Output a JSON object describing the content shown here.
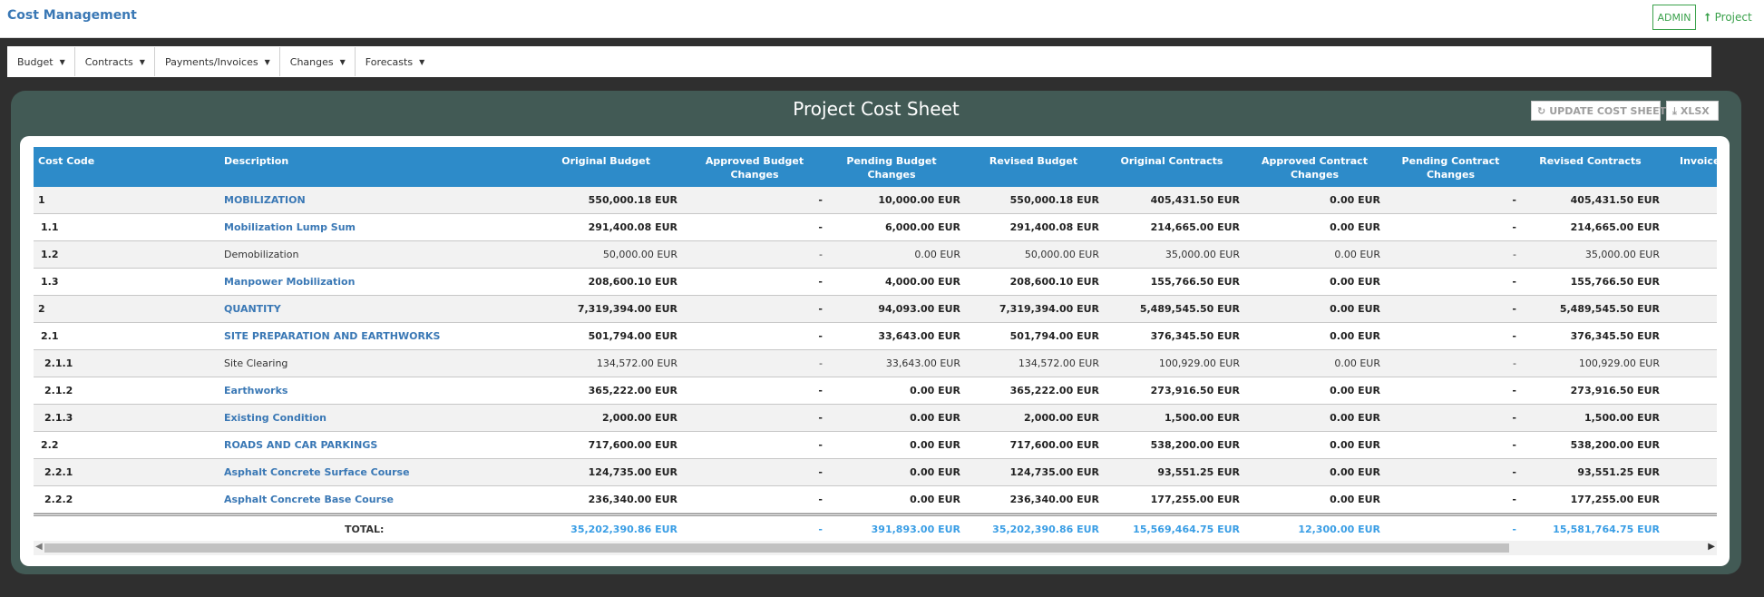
{
  "app": {
    "title": "Cost Management",
    "admin_label": "ADMIN",
    "project_label": "Project"
  },
  "menu": [
    {
      "label": "Budget"
    },
    {
      "label": "Contracts"
    },
    {
      "label": "Payments/Invoices"
    },
    {
      "label": "Changes"
    },
    {
      "label": "Forecasts"
    }
  ],
  "sheet": {
    "title": "Project Cost Sheet",
    "update_label": "UPDATE COST SHEET",
    "xlsx_label": "XLSX"
  },
  "table": {
    "headers": {
      "code": "Cost Code",
      "desc": "Description",
      "ob": "Original Budget",
      "abc": "Approved Budget Changes",
      "pbc": "Pending Budget Changes",
      "rb": "Revised Budget",
      "oc": "Original Contracts",
      "acc": "Approved Contract Changes",
      "pcc": "Pending Contract Changes",
      "rc": "Revised Contracts",
      "inv": "Invoiced"
    },
    "rows": [
      {
        "code": "1",
        "desc": "MOBILIZATION",
        "ob": "550,000.18 EUR",
        "abc": "-",
        "pbc": "10,000.00 EUR",
        "rb": "550,000.18 EUR",
        "oc": "405,431.50 EUR",
        "acc": "0.00 EUR",
        "pcc": "-",
        "rc": "405,431.50 EUR"
      },
      {
        "code": "1.1",
        "desc": "Mobilization Lump Sum",
        "ob": "291,400.08 EUR",
        "abc": "-",
        "pbc": "6,000.00 EUR",
        "rb": "291,400.08 EUR",
        "oc": "214,665.00 EUR",
        "acc": "0.00 EUR",
        "pcc": "-",
        "rc": "214,665.00 EUR"
      },
      {
        "code": "1.2",
        "desc": "Demobilization",
        "ob": "50,000.00 EUR",
        "abc": "-",
        "pbc": "0.00 EUR",
        "rb": "50,000.00 EUR",
        "oc": "35,000.00 EUR",
        "acc": "0.00 EUR",
        "pcc": "-",
        "rc": "35,000.00 EUR"
      },
      {
        "code": "1.3",
        "desc": "Manpower Mobilization",
        "ob": "208,600.10 EUR",
        "abc": "-",
        "pbc": "4,000.00 EUR",
        "rb": "208,600.10 EUR",
        "oc": "155,766.50 EUR",
        "acc": "0.00 EUR",
        "pcc": "-",
        "rc": "155,766.50 EUR"
      },
      {
        "code": "2",
        "desc": "QUANTITY",
        "ob": "7,319,394.00 EUR",
        "abc": "-",
        "pbc": "94,093.00 EUR",
        "rb": "7,319,394.00 EUR",
        "oc": "5,489,545.50 EUR",
        "acc": "0.00 EUR",
        "pcc": "-",
        "rc": "5,489,545.50 EUR"
      },
      {
        "code": "2.1",
        "desc": "SITE PREPARATION AND EARTHWORKS",
        "ob": "501,794.00 EUR",
        "abc": "-",
        "pbc": "33,643.00 EUR",
        "rb": "501,794.00 EUR",
        "oc": "376,345.50 EUR",
        "acc": "0.00 EUR",
        "pcc": "-",
        "rc": "376,345.50 EUR"
      },
      {
        "code": "2.1.1",
        "desc": "Site Clearing",
        "ob": "134,572.00 EUR",
        "abc": "-",
        "pbc": "33,643.00 EUR",
        "rb": "134,572.00 EUR",
        "oc": "100,929.00 EUR",
        "acc": "0.00 EUR",
        "pcc": "-",
        "rc": "100,929.00 EUR"
      },
      {
        "code": "2.1.2",
        "desc": "Earthworks",
        "ob": "365,222.00 EUR",
        "abc": "-",
        "pbc": "0.00 EUR",
        "rb": "365,222.00 EUR",
        "oc": "273,916.50 EUR",
        "acc": "0.00 EUR",
        "pcc": "-",
        "rc": "273,916.50 EUR"
      },
      {
        "code": "2.1.3",
        "desc": "Existing Condition",
        "ob": "2,000.00 EUR",
        "abc": "-",
        "pbc": "0.00 EUR",
        "rb": "2,000.00 EUR",
        "oc": "1,500.00 EUR",
        "acc": "0.00 EUR",
        "pcc": "-",
        "rc": "1,500.00 EUR"
      },
      {
        "code": "2.2",
        "desc": "ROADS AND CAR PARKINGS",
        "ob": "717,600.00 EUR",
        "abc": "-",
        "pbc": "0.00 EUR",
        "rb": "717,600.00 EUR",
        "oc": "538,200.00 EUR",
        "acc": "0.00 EUR",
        "pcc": "-",
        "rc": "538,200.00 EUR"
      },
      {
        "code": "2.2.1",
        "desc": "Asphalt Concrete Surface Course",
        "ob": "124,735.00 EUR",
        "abc": "-",
        "pbc": "0.00 EUR",
        "rb": "124,735.00 EUR",
        "oc": "93,551.25 EUR",
        "acc": "0.00 EUR",
        "pcc": "-",
        "rc": "93,551.25 EUR"
      },
      {
        "code": "2.2.2",
        "desc": "Asphalt Concrete Base Course",
        "ob": "236,340.00 EUR",
        "abc": "-",
        "pbc": "0.00 EUR",
        "rb": "236,340.00 EUR",
        "oc": "177,255.00 EUR",
        "acc": "0.00 EUR",
        "pcc": "-",
        "rc": "177,255.00 EUR"
      }
    ],
    "total": {
      "label": "TOTAL:",
      "ob": "35,202,390.86 EUR",
      "abc": "-",
      "pbc": "391,893.00 EUR",
      "rb": "35,202,390.86 EUR",
      "oc": "15,569,464.75 EUR",
      "acc": "12,300.00 EUR",
      "pcc": "-",
      "rc": "15,581,764.75 EUR"
    }
  }
}
